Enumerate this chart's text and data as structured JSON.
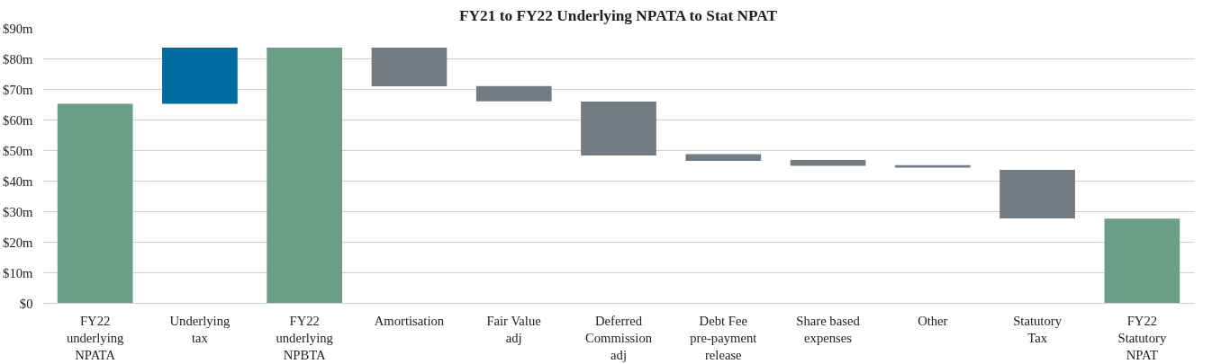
{
  "chart_data": {
    "type": "bar",
    "title": "FY21 to FY22 Underlying NPATA to Stat NPAT",
    "categories": [
      "FY22 underlying NPATA",
      "Underlying tax",
      "FY22 underlying NPBTA",
      "Amortisation",
      "Fair Value adj",
      "Deferred Commission adj",
      "Debt Fee pre-payment release",
      "Share based expenses",
      "Other",
      "Statutory Tax",
      "FY22 Statutory NPAT"
    ],
    "values": [
      65.3,
      18.4,
      83.7,
      -12.7,
      -5.0,
      -17.6,
      -2.2,
      -1.9,
      -0.8,
      -15.9,
      27.7
    ],
    "base": [
      0,
      65.3,
      0,
      83.7,
      71.1,
      66.0,
      48.8,
      46.9,
      45.2,
      43.7,
      0
    ],
    "colors": [
      "#6b9e86",
      "#006b9e",
      "#6b9e86",
      "#737c83",
      "#737c83",
      "#737c83",
      "#737c83",
      "#737c83",
      "#737c83",
      "#737c83",
      "#6b9e86"
    ],
    "ylim": [
      0,
      90
    ],
    "yticks": [
      {
        "value": 0,
        "label": "$0"
      },
      {
        "value": 10,
        "label": "$10m"
      },
      {
        "value": 20,
        "label": "$20m"
      },
      {
        "value": 30,
        "label": "$30m"
      },
      {
        "value": 40,
        "label": "$40m"
      },
      {
        "value": 50,
        "label": "$50m"
      },
      {
        "value": 60,
        "label": "$60m"
      },
      {
        "value": 70,
        "label": "$70m"
      },
      {
        "value": 80,
        "label": "$80m"
      },
      {
        "value": 90,
        "label": "$90m"
      }
    ],
    "grid": "y"
  }
}
